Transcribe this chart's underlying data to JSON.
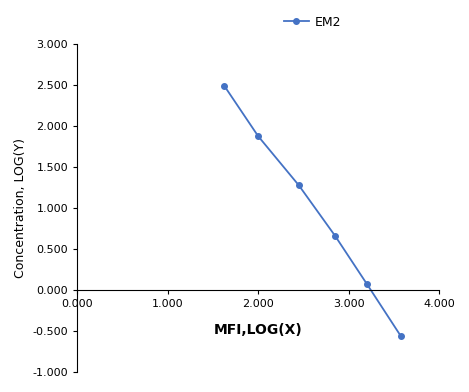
{
  "x": [
    1.625,
    2.0,
    2.45,
    2.85,
    3.2,
    3.575
  ],
  "y": [
    2.49,
    1.875,
    1.275,
    0.66,
    0.075,
    -0.56
  ],
  "line_color": "#4472C4",
  "marker": "o",
  "marker_size": 4,
  "legend_label": "EM2",
  "xlabel": "MFI,LOG(X)",
  "ylabel": "Concentration, LOG(Y)",
  "xlim": [
    0.0,
    4.0
  ],
  "ylim": [
    -1.0,
    3.0
  ],
  "xticks": [
    0.0,
    1.0,
    2.0,
    3.0,
    4.0
  ],
  "yticks": [
    -1.0,
    -0.5,
    0.0,
    0.5,
    1.0,
    1.5,
    2.0,
    2.5,
    3.0
  ],
  "xlabel_fontsize": 10,
  "ylabel_fontsize": 9,
  "legend_fontsize": 9,
  "tick_fontsize": 8,
  "background_color": "#ffffff"
}
